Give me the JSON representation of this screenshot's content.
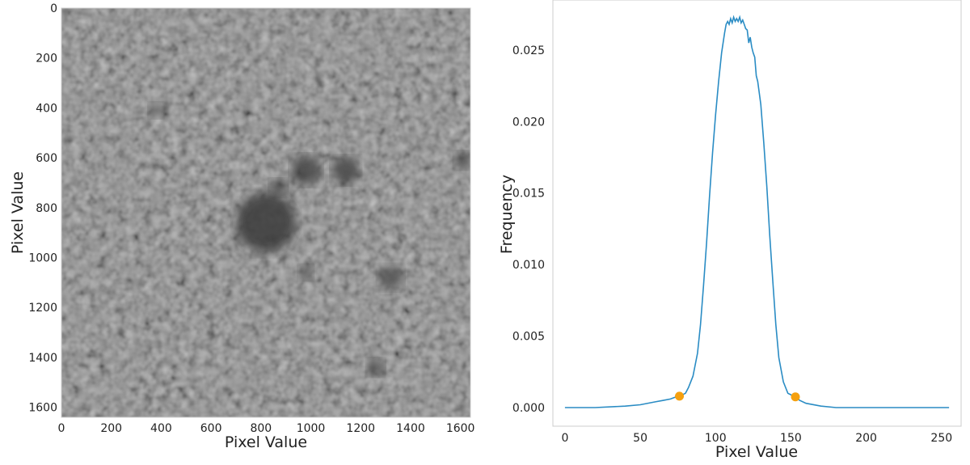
{
  "chart_data": [
    {
      "type": "heatmap",
      "description_text": "",
      "xlabel": "Pixel Value",
      "ylabel": "Pixel Value",
      "xlim": [
        0,
        1640
      ],
      "ylim": [
        1640,
        0
      ],
      "x_ticks": [
        0,
        200,
        400,
        600,
        800,
        1000,
        1200,
        1400,
        1600
      ],
      "y_ticks": [
        0,
        200,
        400,
        600,
        800,
        1000,
        1200,
        1400,
        1600
      ],
      "colormap": "gray",
      "grid": false,
      "dark_regions": [
        {
          "x": 820,
          "y": 860,
          "r": 120,
          "level": 0.15
        },
        {
          "x": 980,
          "y": 650,
          "r": 60,
          "level": 0.25
        },
        {
          "x": 1140,
          "y": 650,
          "r": 55,
          "level": 0.25
        },
        {
          "x": 870,
          "y": 720,
          "r": 35,
          "level": 0.3
        },
        {
          "x": 1320,
          "y": 1080,
          "r": 50,
          "level": 0.35
        },
        {
          "x": 1260,
          "y": 1440,
          "r": 35,
          "level": 0.35
        },
        {
          "x": 1610,
          "y": 610,
          "r": 35,
          "level": 0.35
        },
        {
          "x": 980,
          "y": 1060,
          "r": 30,
          "level": 0.4
        },
        {
          "x": 380,
          "y": 410,
          "r": 30,
          "level": 0.45
        }
      ]
    },
    {
      "type": "line",
      "xlabel": "Pixel Value",
      "ylabel": "Frequency",
      "xlim": [
        -8,
        263
      ],
      "ylim": [
        -0.0013,
        0.0285
      ],
      "x_ticks": [
        0,
        50,
        100,
        150,
        200,
        250
      ],
      "y_ticks": [
        "0.000",
        "0.005",
        "0.010",
        "0.015",
        "0.020",
        "0.025"
      ],
      "y_tick_values": [
        0,
        0.005,
        0.01,
        0.015,
        0.02,
        0.025
      ],
      "grid": false,
      "series": [
        {
          "color": "#2a8cc4",
          "x": [
            0,
            20,
            40,
            50,
            60,
            65,
            70,
            75,
            78,
            80,
            82,
            85,
            88,
            90,
            92,
            94,
            96,
            98,
            100,
            102,
            104,
            106,
            107,
            108,
            109,
            110,
            111,
            112,
            113,
            114,
            115,
            116,
            117,
            118,
            119,
            120,
            121,
            122,
            123,
            124,
            125,
            126,
            127,
            128,
            130,
            132,
            134,
            136,
            138,
            140,
            142,
            145,
            148,
            150,
            153,
            156,
            160,
            170,
            180,
            200,
            220,
            240,
            255
          ],
          "y": [
            0.0,
            0.0,
            0.0001,
            0.0002,
            0.0004,
            0.0005,
            0.0006,
            0.0008,
            0.0009,
            0.001,
            0.0014,
            0.0022,
            0.0038,
            0.0058,
            0.0085,
            0.0115,
            0.0148,
            0.0178,
            0.0205,
            0.0228,
            0.0248,
            0.0262,
            0.0268,
            0.027,
            0.0268,
            0.0272,
            0.0269,
            0.0273,
            0.027,
            0.0272,
            0.027,
            0.0273,
            0.0269,
            0.0271,
            0.0268,
            0.0265,
            0.0264,
            0.0255,
            0.0259,
            0.0252,
            0.0248,
            0.0245,
            0.0232,
            0.0228,
            0.0212,
            0.0185,
            0.0155,
            0.012,
            0.0088,
            0.0058,
            0.0035,
            0.0018,
            0.001,
            0.0009,
            0.0007,
            0.0005,
            0.0003,
            0.0001,
            0.0,
            0.0,
            0.0,
            0.0,
            0.0
          ]
        }
      ],
      "markers": {
        "color": "#f5a00f",
        "points": [
          {
            "x": 76,
            "y": 0.0008
          },
          {
            "x": 153,
            "y": 0.00075
          }
        ]
      }
    }
  ]
}
